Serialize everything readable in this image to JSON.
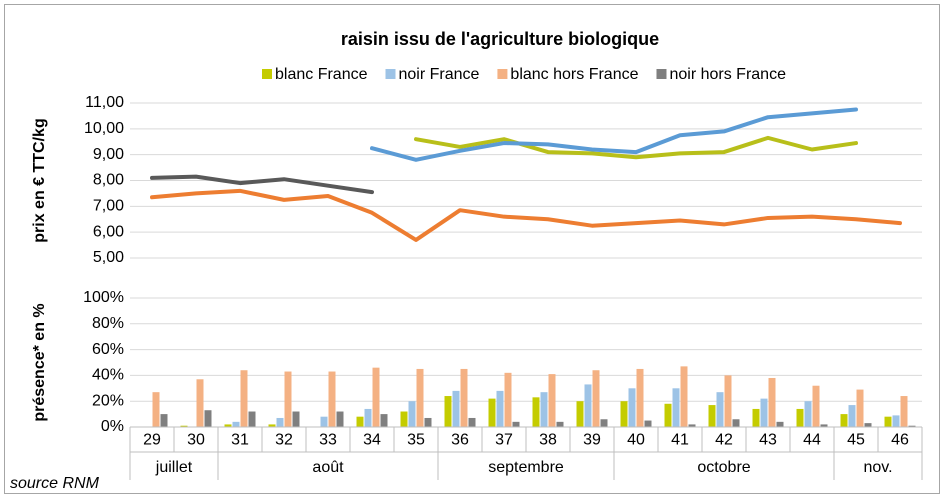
{
  "title": "raisin issu de l'agriculture biologique",
  "source": "source RNM",
  "chart_data": [
    {
      "type": "line",
      "ylabel": "prix en € TTC/kg",
      "ylim": [
        5,
        11
      ],
      "yticks": [
        {
          "value": 5,
          "label": "5,00"
        },
        {
          "value": 6,
          "label": "6,00"
        },
        {
          "value": 7,
          "label": "7,00"
        },
        {
          "value": 8,
          "label": "8,00"
        },
        {
          "value": 9,
          "label": "9,00"
        },
        {
          "value": 10,
          "label": "10,00"
        },
        {
          "value": 11,
          "label": "11,00"
        }
      ],
      "grid": true,
      "series": [
        {
          "name": "blanc France",
          "color": "#b8bf1a",
          "values": [
            null,
            null,
            null,
            null,
            null,
            null,
            9.6,
            9.3,
            9.6,
            9.1,
            9.05,
            8.9,
            9.05,
            9.1,
            9.65,
            9.2,
            9.45,
            null
          ]
        },
        {
          "name": "noir France",
          "color": "#5b9bd5",
          "values": [
            null,
            null,
            null,
            null,
            null,
            9.25,
            8.8,
            9.15,
            9.45,
            9.4,
            9.2,
            9.1,
            9.75,
            9.9,
            10.45,
            10.6,
            10.75,
            null
          ]
        },
        {
          "name": "blanc hors France",
          "color": "#ed7d31",
          "values": [
            7.35,
            7.5,
            7.6,
            7.25,
            7.4,
            6.75,
            5.7,
            6.85,
            6.6,
            6.5,
            6.25,
            6.35,
            6.45,
            6.3,
            6.55,
            6.6,
            6.5,
            6.35
          ]
        },
        {
          "name": "noir hors France",
          "color": "#595959",
          "values": [
            8.1,
            8.15,
            7.9,
            8.05,
            7.8,
            7.55,
            null,
            null,
            null,
            null,
            null,
            null,
            null,
            null,
            null,
            null,
            null,
            null
          ]
        }
      ]
    },
    {
      "type": "bar",
      "ylabel": "présence* en %",
      "ylim": [
        0,
        100
      ],
      "yticks": [
        {
          "value": 0,
          "label": "0%"
        },
        {
          "value": 20,
          "label": "20%"
        },
        {
          "value": 40,
          "label": "40%"
        },
        {
          "value": 60,
          "label": "60%"
        },
        {
          "value": 80,
          "label": "80%"
        },
        {
          "value": 100,
          "label": "100%"
        }
      ],
      "grid": true,
      "categories": [
        "29",
        "30",
        "31",
        "32",
        "33",
        "34",
        "35",
        "36",
        "37",
        "38",
        "39",
        "40",
        "41",
        "42",
        "43",
        "44",
        "45",
        "46"
      ],
      "groups": [
        {
          "label": "juillet",
          "span": 2
        },
        {
          "label": "août",
          "span": 5
        },
        {
          "label": "septembre",
          "span": 4
        },
        {
          "label": "octobre",
          "span": 5
        },
        {
          "label": "nov.",
          "span": 2
        }
      ],
      "series": [
        {
          "color": "#c4cc00",
          "values": [
            0,
            1,
            2,
            2,
            0,
            8,
            12,
            24,
            22,
            23,
            20,
            20,
            18,
            17,
            14,
            14,
            10,
            8
          ]
        },
        {
          "color": "#9dc3e6",
          "values": [
            0,
            0,
            4,
            7,
            8,
            14,
            20,
            28,
            28,
            27,
            33,
            30,
            30,
            27,
            22,
            20,
            17,
            9
          ]
        },
        {
          "color": "#f4b183",
          "values": [
            27,
            37,
            44,
            43,
            43,
            46,
            45,
            45,
            42,
            41,
            44,
            45,
            47,
            40,
            38,
            32,
            29,
            24
          ]
        },
        {
          "color": "#7f7f7f",
          "values": [
            10,
            13,
            12,
            12,
            12,
            10,
            7,
            7,
            4,
            4,
            6,
            5,
            2,
            6,
            4,
            2,
            3,
            1
          ]
        }
      ]
    }
  ]
}
